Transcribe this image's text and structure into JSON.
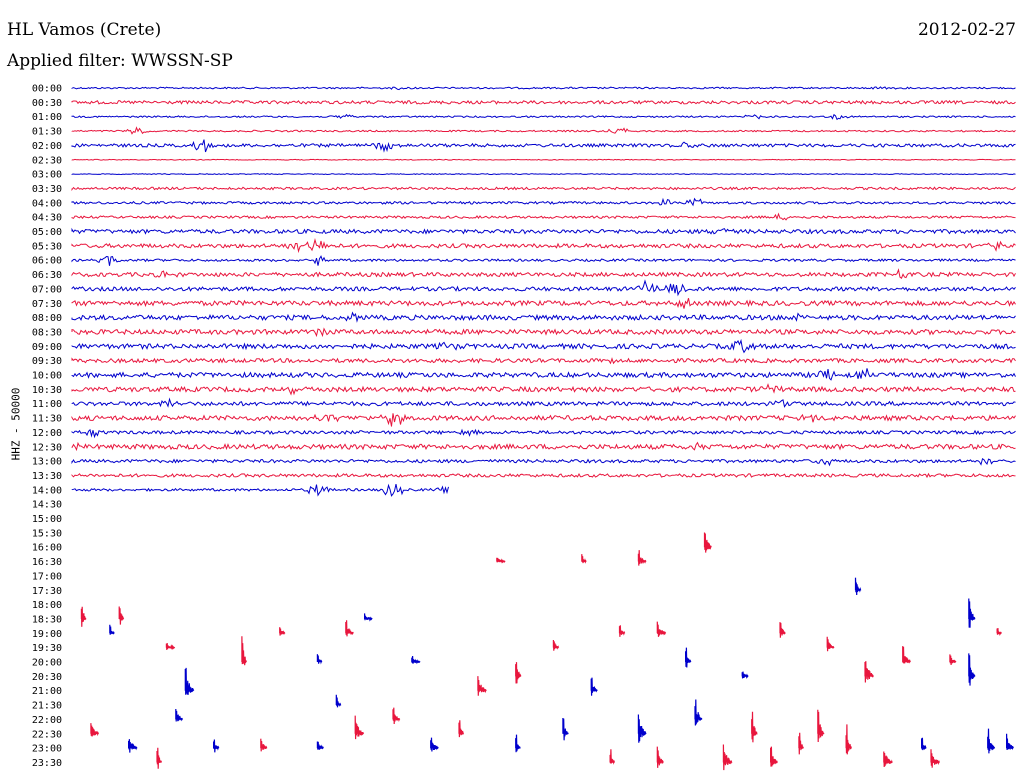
{
  "header": {
    "station": "HL Vamos (Crete)",
    "date": "2012-02-27",
    "filter": "Applied filter: WWSSN-SP"
  },
  "axis_label": "HHZ - 50000",
  "colors": {
    "even_trace": "#0000cc",
    "odd_trace": "#e8163d",
    "text": "#000000"
  },
  "rows": [
    {
      "label": "00:00",
      "amp": 1,
      "events": [
        {
          "t": 0.35,
          "a": 2
        },
        {
          "t": 0.86,
          "a": 2
        }
      ]
    },
    {
      "label": "00:30",
      "amp": 2,
      "events": []
    },
    {
      "label": "01:00",
      "amp": 1,
      "events": [
        {
          "t": 0.29,
          "a": 3
        },
        {
          "t": 0.72,
          "a": 3
        },
        {
          "t": 0.81,
          "a": 3
        }
      ]
    },
    {
      "label": "01:30",
      "amp": 1,
      "events": [
        {
          "t": 0.07,
          "a": 4
        },
        {
          "t": 0.58,
          "a": 5
        }
      ]
    },
    {
      "label": "02:00",
      "amp": 2,
      "events": [
        {
          "t": 0.14,
          "a": 8
        },
        {
          "t": 0.33,
          "a": 6
        },
        {
          "t": 0.65,
          "a": 3
        }
      ]
    },
    {
      "label": "02:30",
      "amp": 0.5,
      "events": []
    },
    {
      "label": "03:00",
      "amp": 0.5,
      "events": []
    },
    {
      "label": "03:30",
      "amp": 1.5,
      "events": []
    },
    {
      "label": "04:00",
      "amp": 1.5,
      "events": [
        {
          "t": 0.63,
          "a": 4
        },
        {
          "t": 0.66,
          "a": 6
        }
      ]
    },
    {
      "label": "04:30",
      "amp": 1.5,
      "events": [
        {
          "t": 0.75,
          "a": 3
        }
      ]
    },
    {
      "label": "05:00",
      "amp": 2.5,
      "events": [
        {
          "t": 0.69,
          "a": 4
        }
      ]
    },
    {
      "label": "05:30",
      "amp": 2.5,
      "events": [
        {
          "t": 0.24,
          "a": 8
        },
        {
          "t": 0.26,
          "a": 7
        },
        {
          "t": 0.98,
          "a": 4
        }
      ]
    },
    {
      "label": "06:00",
      "amp": 1.5,
      "events": [
        {
          "t": 0.04,
          "a": 5
        },
        {
          "t": 0.26,
          "a": 6
        }
      ]
    },
    {
      "label": "06:30",
      "amp": 2.5,
      "events": [
        {
          "t": 0.1,
          "a": 4
        },
        {
          "t": 0.88,
          "a": 4
        }
      ]
    },
    {
      "label": "07:00",
      "amp": 2.5,
      "events": [
        {
          "t": 0.61,
          "a": 9
        },
        {
          "t": 0.64,
          "a": 7
        }
      ]
    },
    {
      "label": "07:30",
      "amp": 3,
      "events": [
        {
          "t": 0.65,
          "a": 4
        }
      ]
    },
    {
      "label": "08:00",
      "amp": 3,
      "events": [
        {
          "t": 0.3,
          "a": 4
        },
        {
          "t": 0.77,
          "a": 4
        }
      ]
    },
    {
      "label": "08:30",
      "amp": 3,
      "events": [
        {
          "t": 0.26,
          "a": 4
        }
      ]
    },
    {
      "label": "09:00",
      "amp": 3,
      "events": [
        {
          "t": 0.71,
          "a": 7
        },
        {
          "t": 0.4,
          "a": 4
        }
      ]
    },
    {
      "label": "09:30",
      "amp": 2.5,
      "events": [
        {
          "t": 0.57,
          "a": 4
        }
      ]
    },
    {
      "label": "10:00",
      "amp": 3,
      "events": [
        {
          "t": 0.8,
          "a": 7
        },
        {
          "t": 0.84,
          "a": 10
        }
      ]
    },
    {
      "label": "10:30",
      "amp": 3,
      "events": [
        {
          "t": 0.23,
          "a": 5
        },
        {
          "t": 0.74,
          "a": 4
        }
      ]
    },
    {
      "label": "11:00",
      "amp": 2.5,
      "events": [
        {
          "t": 0.1,
          "a": 4
        },
        {
          "t": 0.75,
          "a": 4
        }
      ]
    },
    {
      "label": "11:30",
      "amp": 3,
      "events": [
        {
          "t": 0.27,
          "a": 7
        },
        {
          "t": 0.34,
          "a": 9
        },
        {
          "t": 0.78,
          "a": 5
        }
      ]
    },
    {
      "label": "12:00",
      "amp": 2,
      "events": [
        {
          "t": 0.02,
          "a": 4
        },
        {
          "t": 0.42,
          "a": 3
        }
      ]
    },
    {
      "label": "12:30",
      "amp": 3,
      "events": [
        {
          "t": 0.0,
          "a": 5
        },
        {
          "t": 0.66,
          "a": 3
        }
      ]
    },
    {
      "label": "13:00",
      "amp": 2,
      "events": [
        {
          "t": 0.8,
          "a": 5
        },
        {
          "t": 0.97,
          "a": 6
        }
      ]
    },
    {
      "label": "13:30",
      "amp": 2,
      "events": []
    },
    {
      "label": "14:00",
      "amp": 1.5,
      "events": [
        {
          "t": 0.26,
          "a": 7
        },
        {
          "t": 0.34,
          "a": 8
        },
        {
          "t": 0.4,
          "a": 4
        }
      ],
      "end": 0.4
    },
    {
      "label": "14:30",
      "amp": 0,
      "events": [],
      "end": 0
    },
    {
      "label": "15:00",
      "amp": 0,
      "events": [],
      "end": 0
    },
    {
      "label": "15:30",
      "amp": 0,
      "events": [],
      "end": 0
    },
    {
      "label": "16:00",
      "amp": 0,
      "events": [],
      "end": 0
    },
    {
      "label": "16:30",
      "amp": 0,
      "events": [],
      "end": 0
    },
    {
      "label": "17:00",
      "amp": 0,
      "events": [],
      "end": 0
    },
    {
      "label": "17:30",
      "amp": 0,
      "events": [],
      "end": 0
    },
    {
      "label": "18:00",
      "amp": 0,
      "events": [],
      "end": 0
    },
    {
      "label": "18:30",
      "amp": 0,
      "events": [],
      "end": 0
    },
    {
      "label": "19:00",
      "amp": 0,
      "events": [],
      "end": 0
    },
    {
      "label": "19:30",
      "amp": 0,
      "events": [],
      "end": 0
    },
    {
      "label": "20:00",
      "amp": 0,
      "events": [],
      "end": 0
    },
    {
      "label": "20:30",
      "amp": 0,
      "events": [],
      "end": 0
    },
    {
      "label": "21:00",
      "amp": 0,
      "events": [],
      "end": 0
    },
    {
      "label": "21:30",
      "amp": 0,
      "events": [],
      "end": 0
    },
    {
      "label": "22:00",
      "amp": 0,
      "events": [],
      "end": 0
    },
    {
      "label": "22:30",
      "amp": 0,
      "events": [],
      "end": 0
    },
    {
      "label": "23:00",
      "amp": 0,
      "events": [],
      "end": 0
    },
    {
      "label": "23:30",
      "amp": 0,
      "events": [],
      "end": 0
    }
  ],
  "noise_bursts": [
    {
      "t": 0.45,
      "row": 33,
      "a": 6,
      "c": "odd"
    },
    {
      "t": 0.54,
      "row": 33,
      "a": 8,
      "c": "odd"
    },
    {
      "t": 0.6,
      "row": 33,
      "a": 12,
      "c": "odd"
    },
    {
      "t": 0.67,
      "row": 32,
      "a": 20,
      "c": "odd"
    },
    {
      "t": 0.83,
      "row": 35,
      "a": 14,
      "c": "even"
    },
    {
      "t": 0.01,
      "row": 37,
      "a": 20,
      "c": "odd"
    },
    {
      "t": 0.05,
      "row": 37,
      "a": 16,
      "c": "odd"
    },
    {
      "t": 0.04,
      "row": 38,
      "a": 10,
      "c": "even"
    },
    {
      "t": 0.1,
      "row": 39,
      "a": 6,
      "c": "odd"
    },
    {
      "t": 0.18,
      "row": 40,
      "a": 30,
      "c": "odd"
    },
    {
      "t": 0.22,
      "row": 38,
      "a": 8,
      "c": "odd"
    },
    {
      "t": 0.29,
      "row": 38,
      "a": 14,
      "c": "odd"
    },
    {
      "t": 0.31,
      "row": 37,
      "a": 6,
      "c": "even"
    },
    {
      "t": 0.26,
      "row": 40,
      "a": 10,
      "c": "even"
    },
    {
      "t": 0.28,
      "row": 43,
      "a": 12,
      "c": "even"
    },
    {
      "t": 0.36,
      "row": 40,
      "a": 6,
      "c": "even"
    },
    {
      "t": 0.43,
      "row": 42,
      "a": 16,
      "c": "odd"
    },
    {
      "t": 0.47,
      "row": 41,
      "a": 18,
      "c": "odd"
    },
    {
      "t": 0.51,
      "row": 39,
      "a": 10,
      "c": "odd"
    },
    {
      "t": 0.55,
      "row": 42,
      "a": 14,
      "c": "even"
    },
    {
      "t": 0.58,
      "row": 38,
      "a": 10,
      "c": "odd"
    },
    {
      "t": 0.62,
      "row": 38,
      "a": 12,
      "c": "odd"
    },
    {
      "t": 0.65,
      "row": 40,
      "a": 16,
      "c": "even"
    },
    {
      "t": 0.71,
      "row": 41,
      "a": 8,
      "c": "even"
    },
    {
      "t": 0.75,
      "row": 38,
      "a": 14,
      "c": "odd"
    },
    {
      "t": 0.8,
      "row": 39,
      "a": 12,
      "c": "odd"
    },
    {
      "t": 0.84,
      "row": 41,
      "a": 20,
      "c": "odd"
    },
    {
      "t": 0.88,
      "row": 40,
      "a": 16,
      "c": "odd"
    },
    {
      "t": 0.93,
      "row": 40,
      "a": 10,
      "c": "odd"
    },
    {
      "t": 0.95,
      "row": 37,
      "a": 24,
      "c": "even"
    },
    {
      "t": 0.98,
      "row": 38,
      "a": 6,
      "c": "odd"
    },
    {
      "t": 0.12,
      "row": 42,
      "a": 24,
      "c": "even"
    },
    {
      "t": 0.11,
      "row": 44,
      "a": 14,
      "c": "even"
    },
    {
      "t": 0.34,
      "row": 44,
      "a": 12,
      "c": "odd"
    },
    {
      "t": 0.41,
      "row": 45,
      "a": 14,
      "c": "odd"
    },
    {
      "t": 0.52,
      "row": 45,
      "a": 18,
      "c": "even"
    },
    {
      "t": 0.6,
      "row": 45,
      "a": 24,
      "c": "even"
    },
    {
      "t": 0.66,
      "row": 44,
      "a": 22,
      "c": "even"
    },
    {
      "t": 0.72,
      "row": 45,
      "a": 24,
      "c": "odd"
    },
    {
      "t": 0.77,
      "row": 46,
      "a": 20,
      "c": "odd"
    },
    {
      "t": 0.82,
      "row": 46,
      "a": 24,
      "c": "odd"
    },
    {
      "t": 0.9,
      "row": 46,
      "a": 14,
      "c": "even"
    },
    {
      "t": 0.97,
      "row": 46,
      "a": 20,
      "c": "even"
    },
    {
      "t": 0.02,
      "row": 45,
      "a": 14,
      "c": "odd"
    },
    {
      "t": 0.06,
      "row": 46,
      "a": 14,
      "c": "even"
    },
    {
      "t": 0.09,
      "row": 47,
      "a": 18,
      "c": "odd"
    },
    {
      "t": 0.15,
      "row": 46,
      "a": 12,
      "c": "even"
    },
    {
      "t": 0.2,
      "row": 46,
      "a": 12,
      "c": "odd"
    },
    {
      "t": 0.26,
      "row": 46,
      "a": 10,
      "c": "even"
    },
    {
      "t": 0.3,
      "row": 45,
      "a": 20,
      "c": "odd"
    },
    {
      "t": 0.38,
      "row": 46,
      "a": 14,
      "c": "even"
    },
    {
      "t": 0.47,
      "row": 46,
      "a": 14,
      "c": "even"
    },
    {
      "t": 0.57,
      "row": 47,
      "a": 14,
      "c": "odd"
    },
    {
      "t": 0.62,
      "row": 47,
      "a": 16,
      "c": "odd"
    },
    {
      "t": 0.69,
      "row": 47,
      "a": 20,
      "c": "odd"
    },
    {
      "t": 0.74,
      "row": 47,
      "a": 18,
      "c": "odd"
    },
    {
      "t": 0.79,
      "row": 45,
      "a": 26,
      "c": "odd"
    },
    {
      "t": 0.86,
      "row": 47,
      "a": 18,
      "c": "odd"
    },
    {
      "t": 0.91,
      "row": 47,
      "a": 16,
      "c": "odd"
    },
    {
      "t": 0.95,
      "row": 41,
      "a": 24,
      "c": "even"
    },
    {
      "t": 0.99,
      "row": 46,
      "a": 16,
      "c": "even"
    }
  ]
}
